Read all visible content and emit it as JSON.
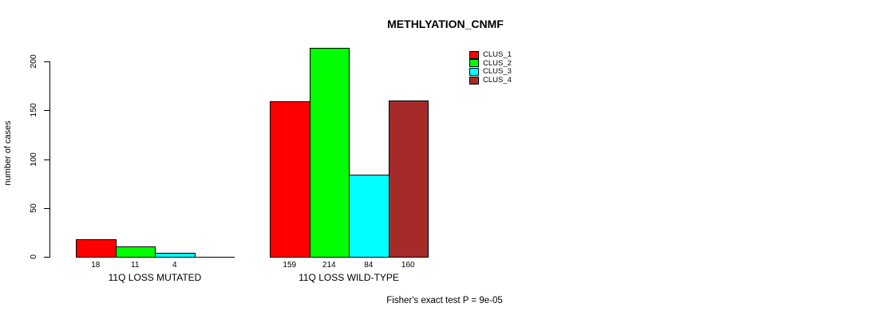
{
  "chart_data": {
    "type": "bar",
    "title": "METHLYATION_CNMF",
    "ylabel": "number of cases",
    "xlabel": "",
    "annotation": "Fisher's exact test P = 9e-05",
    "ylim": [
      0,
      220
    ],
    "yticks": [
      0,
      50,
      100,
      150,
      200
    ],
    "grid": false,
    "legend_position": "top-right",
    "legend": [
      {
        "name": "CLUS_1",
        "color": "#ff0000"
      },
      {
        "name": "CLUS_2",
        "color": "#00ff00"
      },
      {
        "name": "CLUS_3",
        "color": "#00ffff"
      },
      {
        "name": "CLUS_4",
        "color": "#a52a2a"
      }
    ],
    "categories": [
      "11Q LOSS MUTATED",
      "11Q LOSS WILD-TYPE"
    ],
    "series": [
      {
        "name": "CLUS_1",
        "color": "#ff0000",
        "values": [
          18,
          159
        ]
      },
      {
        "name": "CLUS_2",
        "color": "#00ff00",
        "values": [
          11,
          214
        ]
      },
      {
        "name": "CLUS_3",
        "color": "#00ffff",
        "values": [
          4,
          84
        ]
      },
      {
        "name": "CLUS_4",
        "color": "#a52a2a",
        "values": [
          0,
          160
        ]
      }
    ],
    "bar_value_labels": [
      [
        "18",
        "11",
        "4",
        ""
      ],
      [
        "159",
        "214",
        "84",
        "160"
      ]
    ]
  },
  "colors": {
    "background": "#ffffff",
    "text": "#000000",
    "bar_border": "#000000"
  }
}
